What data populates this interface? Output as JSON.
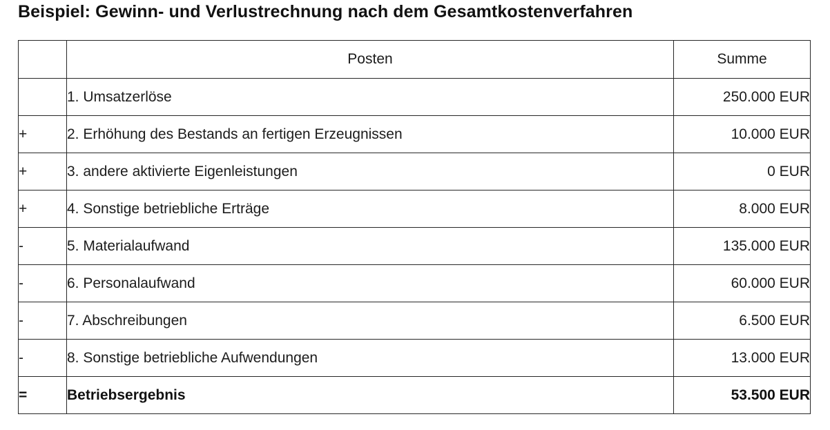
{
  "title": "Beispiel: Gewinn- und Verlustrechnung nach dem Gesamtkostenverfahren",
  "table": {
    "headers": {
      "sign": "",
      "posten": "Posten",
      "summe": "Summe"
    },
    "rows": [
      {
        "sign": "",
        "posten": "1. Umsatzerlöse",
        "summe": "250.000 EUR"
      },
      {
        "sign": "+",
        "posten": "2. Erhöhung des Bestands an fertigen Erzeugnissen",
        "summe": "10.000 EUR"
      },
      {
        "sign": "+",
        "posten": "3. andere aktivierte Eigenleistungen",
        "summe": "0 EUR"
      },
      {
        "sign": "+",
        "posten": "4. Sonstige betriebliche Erträge",
        "summe": "8.000 EUR"
      },
      {
        "sign": "-",
        "posten": "5. Materialaufwand",
        "summe": "135.000 EUR"
      },
      {
        "sign": "-",
        "posten": "6. Personalaufwand",
        "summe": "60.000 EUR"
      },
      {
        "sign": "-",
        "posten": "7. Abschreibungen",
        "summe": "6.500 EUR"
      },
      {
        "sign": "-",
        "posten": "8. Sonstige betriebliche Aufwendungen",
        "summe": "13.000 EUR"
      },
      {
        "sign": "=",
        "posten": "Betriebsergebnis",
        "summe": "53.500 EUR"
      }
    ],
    "colors": {
      "text": "#1c1c1c",
      "border": "#262626",
      "background": "#ffffff"
    }
  }
}
